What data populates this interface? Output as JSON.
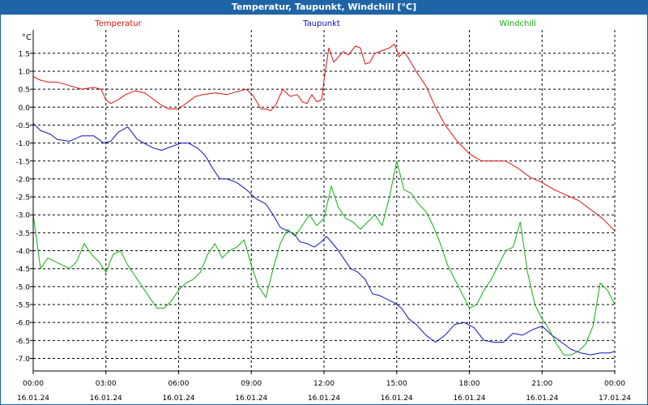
{
  "window": {
    "title": "Temperatur, Taupunkt, Windchill [°C]"
  },
  "chart_data": {
    "type": "line",
    "title": "Temperatur, Taupunkt, Windchill [°C]",
    "yunit": "°C",
    "ylim": [
      -7.35,
      2.15
    ],
    "ygrid_ticks": [
      1.5,
      1.0,
      0.5,
      0.0,
      -0.5,
      -1.0,
      -1.5,
      -2.0,
      -2.5,
      -3.0,
      -3.5,
      -4.0,
      -4.5,
      -5.0,
      -5.5,
      -6.0,
      -6.5,
      -7.0
    ],
    "ytick_labels": [
      "1.5",
      "1.0",
      "0.5",
      "0.0",
      "-0.5",
      "-1.0",
      "-1.5",
      "-2.0",
      "-2.5",
      "-3.0",
      "-3.5",
      "-4.0",
      "-4.5",
      "-5.0",
      "-5.5",
      "-6.0",
      "-6.5",
      "-7.0"
    ],
    "xlim_hours": [
      0,
      24
    ],
    "xtick_hours": [
      0,
      3,
      6,
      9,
      12,
      15,
      18,
      21,
      24
    ],
    "xtick_time_labels": [
      "00:00",
      "03:00",
      "06:00",
      "09:00",
      "12:00",
      "15:00",
      "18:00",
      "21:00",
      "00:00"
    ],
    "xtick_date_labels": [
      "16.01.24",
      "16.01.24",
      "16.01.24",
      "16.01.24",
      "16.01.24",
      "16.01.24",
      "16.01.24",
      "16.01.24",
      "17.01.24"
    ],
    "grid": true,
    "legend_position": "top",
    "series": [
      {
        "name": "Temperatur",
        "color": "#e01010",
        "hours": [
          0,
          0.3,
          0.6,
          1.0,
          1.5,
          2.0,
          2.5,
          2.8,
          3.0,
          3.2,
          3.5,
          3.8,
          4.2,
          4.6,
          5.0,
          5.3,
          5.6,
          6.0,
          6.3,
          6.7,
          7.0,
          7.5,
          8.0,
          8.5,
          8.8,
          9.1,
          9.4,
          9.6,
          9.8,
          10.0,
          10.3,
          10.6,
          10.9,
          11.1,
          11.3,
          11.5,
          11.7,
          11.9,
          12.0,
          12.2,
          12.4,
          12.6,
          12.8,
          13.0,
          13.3,
          13.5,
          13.7,
          13.9,
          14.1,
          14.3,
          14.5,
          14.7,
          14.9,
          15.0,
          15.1,
          15.3,
          15.5,
          15.8,
          16.2,
          16.6,
          17.0,
          17.5,
          18.0,
          18.5,
          19.0,
          19.5,
          20.0,
          20.5,
          21.0,
          21.5,
          22.0,
          22.5,
          23.0,
          23.5,
          24.0
        ],
        "values": [
          0.85,
          0.75,
          0.7,
          0.7,
          0.6,
          0.5,
          0.55,
          0.5,
          0.2,
          0.1,
          0.2,
          0.35,
          0.45,
          0.4,
          0.2,
          0.05,
          -0.05,
          -0.05,
          0.1,
          0.3,
          0.35,
          0.4,
          0.35,
          0.45,
          0.5,
          0.3,
          -0.05,
          -0.05,
          -0.1,
          0.05,
          0.5,
          0.3,
          0.35,
          0.15,
          0.1,
          0.35,
          0.15,
          0.2,
          0.75,
          1.65,
          1.25,
          1.4,
          1.55,
          1.45,
          1.7,
          1.65,
          1.2,
          1.25,
          1.5,
          1.55,
          1.6,
          1.65,
          1.75,
          1.6,
          1.4,
          1.55,
          1.35,
          1.0,
          0.6,
          0.0,
          -0.5,
          -0.95,
          -1.3,
          -1.5,
          -1.5,
          -1.5,
          -1.7,
          -1.95,
          -2.1,
          -2.3,
          -2.45,
          -2.6,
          -2.85,
          -3.1,
          -3.45
        ]
      },
      {
        "name": "Taupunkt",
        "color": "#1010c8",
        "hours": [
          0,
          0.3,
          0.7,
          1.0,
          1.5,
          2.0,
          2.5,
          2.9,
          3.2,
          3.5,
          3.9,
          4.3,
          4.7,
          5.0,
          5.3,
          5.7,
          6.1,
          6.4,
          6.8,
          7.1,
          7.4,
          7.7,
          8.0,
          8.4,
          8.8,
          9.2,
          9.6,
          9.9,
          10.2,
          10.5,
          10.8,
          11.0,
          11.3,
          11.6,
          11.9,
          12.1,
          12.3,
          12.6,
          12.9,
          13.1,
          13.4,
          13.7,
          14.0,
          14.3,
          14.6,
          14.9,
          15.2,
          15.5,
          15.8,
          16.2,
          16.6,
          17.0,
          17.4,
          17.8,
          18.2,
          18.6,
          19.0,
          19.4,
          19.8,
          20.2,
          20.6,
          21.0,
          21.4,
          21.8,
          22.2,
          22.6,
          23.0,
          23.4,
          23.8,
          24.0
        ],
        "values": [
          -0.45,
          -0.65,
          -0.75,
          -0.9,
          -0.95,
          -0.8,
          -0.8,
          -1.0,
          -0.95,
          -0.7,
          -0.55,
          -0.9,
          -1.05,
          -1.15,
          -1.2,
          -1.1,
          -1.0,
          -1.0,
          -1.15,
          -1.35,
          -1.7,
          -2.0,
          -2.0,
          -2.1,
          -2.3,
          -2.55,
          -2.7,
          -3.0,
          -3.35,
          -3.45,
          -3.55,
          -3.75,
          -3.8,
          -3.9,
          -3.75,
          -3.6,
          -3.75,
          -4.0,
          -4.3,
          -4.5,
          -4.6,
          -4.8,
          -5.2,
          -5.25,
          -5.35,
          -5.45,
          -5.6,
          -5.9,
          -6.05,
          -6.35,
          -6.55,
          -6.35,
          -6.05,
          -6.0,
          -6.15,
          -6.5,
          -6.55,
          -6.55,
          -6.3,
          -6.35,
          -6.2,
          -6.1,
          -6.35,
          -6.55,
          -6.75,
          -6.85,
          -6.9,
          -6.85,
          -6.85,
          -6.8
        ]
      },
      {
        "name": "Windchill",
        "color": "#10b010",
        "hours": [
          0,
          0.3,
          0.6,
          0.9,
          1.2,
          1.5,
          1.8,
          2.1,
          2.4,
          2.7,
          3.0,
          3.3,
          3.6,
          3.9,
          4.2,
          4.5,
          4.8,
          5.1,
          5.4,
          5.7,
          6.0,
          6.3,
          6.6,
          6.9,
          7.2,
          7.5,
          7.8,
          8.1,
          8.4,
          8.7,
          9.0,
          9.3,
          9.6,
          9.9,
          10.2,
          10.5,
          10.8,
          11.1,
          11.4,
          11.7,
          12.0,
          12.3,
          12.6,
          12.9,
          13.2,
          13.5,
          13.8,
          14.1,
          14.4,
          14.7,
          15.0,
          15.3,
          15.6,
          15.9,
          16.2,
          16.5,
          16.8,
          17.1,
          17.4,
          17.7,
          18.0,
          18.3,
          18.6,
          18.9,
          19.2,
          19.5,
          19.8,
          20.1,
          20.4,
          20.7,
          21.0,
          21.3,
          21.6,
          21.9,
          22.2,
          22.5,
          22.8,
          23.1,
          23.4,
          23.7,
          24.0
        ],
        "values": [
          -3.0,
          -4.5,
          -4.2,
          -4.3,
          -4.4,
          -4.5,
          -4.3,
          -3.8,
          -4.1,
          -4.3,
          -4.6,
          -4.1,
          -4.0,
          -4.4,
          -4.7,
          -5.0,
          -5.3,
          -5.6,
          -5.6,
          -5.4,
          -5.1,
          -4.9,
          -4.8,
          -4.6,
          -4.1,
          -3.8,
          -4.2,
          -4.0,
          -3.9,
          -3.7,
          -4.4,
          -5.0,
          -5.3,
          -4.5,
          -3.8,
          -3.4,
          -3.6,
          -3.3,
          -3.0,
          -3.3,
          -3.1,
          -2.2,
          -2.8,
          -3.1,
          -3.2,
          -3.4,
          -3.2,
          -3.0,
          -3.3,
          -2.5,
          -1.5,
          -2.3,
          -2.4,
          -2.7,
          -2.9,
          -3.3,
          -3.8,
          -4.4,
          -4.8,
          -5.2,
          -5.6,
          -5.5,
          -5.1,
          -4.8,
          -4.4,
          -4.0,
          -3.9,
          -3.2,
          -4.6,
          -5.5,
          -5.9,
          -6.2,
          -6.6,
          -6.9,
          -6.9,
          -6.8,
          -6.6,
          -6.1,
          -4.9,
          -5.1,
          -5.5
        ]
      }
    ]
  }
}
